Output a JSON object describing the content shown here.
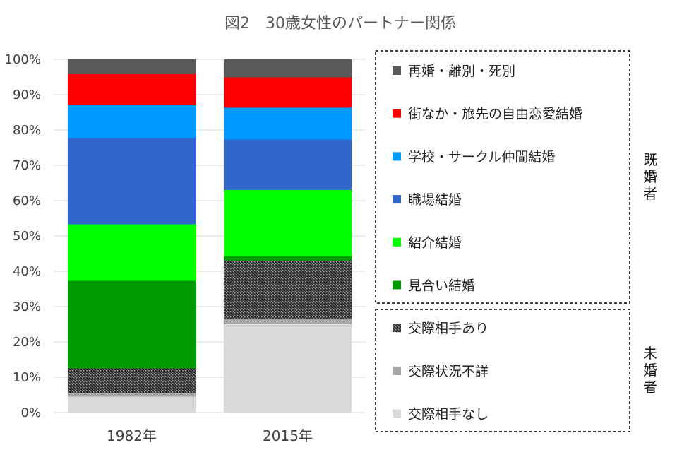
{
  "chart_data": {
    "type": "bar",
    "stacked": true,
    "normalized": true,
    "title": "図2　30歳女性のパートナー関係",
    "xlabel": "",
    "ylabel": "",
    "ylim": [
      0,
      100
    ],
    "yticks": [
      "0%",
      "10%",
      "20%",
      "30%",
      "40%",
      "50%",
      "60%",
      "70%",
      "80%",
      "90%",
      "100%"
    ],
    "grid": true,
    "legend_position": "right",
    "categories": [
      "1982年",
      "2015年"
    ],
    "series": [
      {
        "name": "交際相手なし",
        "values": [
          4.5,
          25.0
        ],
        "color": "#d9d9d9",
        "pattern": "light-dots",
        "group": "未婚者"
      },
      {
        "name": "交際状況不詳",
        "values": [
          1.0,
          1.5
        ],
        "color": "#a6a6a6",
        "pattern": "none",
        "group": "未婚者"
      },
      {
        "name": "交際相手あり",
        "values": [
          7.0,
          16.5
        ],
        "color": "#595959",
        "pattern": "checker",
        "group": "未婚者"
      },
      {
        "name": "見合い結婚",
        "values": [
          24.8,
          1.2
        ],
        "color": "#009900",
        "pattern": "none",
        "group": "既婚者"
      },
      {
        "name": "紹介結婚",
        "values": [
          16.0,
          18.8
        ],
        "color": "#00ff00",
        "pattern": "none",
        "group": "既婚者"
      },
      {
        "name": "職場結婚",
        "values": [
          24.4,
          14.3
        ],
        "color": "#3366cc",
        "pattern": "none",
        "group": "既婚者"
      },
      {
        "name": "学校・サークル仲間結婚",
        "values": [
          9.3,
          9.0
        ],
        "color": "#0099ff",
        "pattern": "none",
        "group": "既婚者"
      },
      {
        "name": "街なか・旅先の自由恋愛結婚",
        "values": [
          8.8,
          8.6
        ],
        "color": "#ff0000",
        "pattern": "none",
        "group": "既婚者"
      },
      {
        "name": "再婚・離別・死別",
        "values": [
          4.2,
          5.1
        ],
        "color": "#595959",
        "pattern": "none",
        "group": "既婚者"
      }
    ],
    "legend_groups": [
      {
        "label": "既婚者",
        "items": [
          "再婚・離別・死別",
          "街なか・旅先の自由恋愛結婚",
          "学校・サークル仲間結婚",
          "職場結婚",
          "紹介結婚",
          "見合い結婚"
        ]
      },
      {
        "label": "未婚者",
        "items": [
          "交際相手あり",
          "交際状況不詳",
          "交際相手なし"
        ]
      }
    ]
  }
}
